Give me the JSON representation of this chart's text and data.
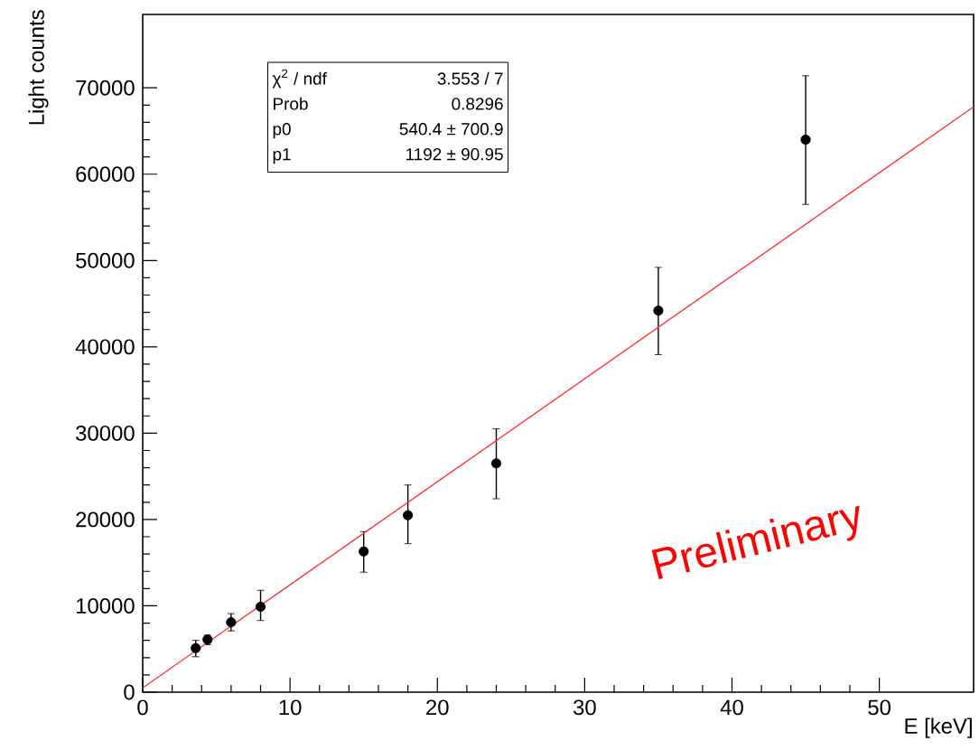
{
  "chart_data": {
    "type": "scatter",
    "xlabel": "E [keV]",
    "ylabel": "Light counts",
    "series": [
      {
        "color": "#000000",
        "marker": "circle",
        "x": [
          3.6,
          4.4,
          6,
          8,
          15,
          18,
          24,
          35,
          45
        ],
        "values": [
          5100,
          6100,
          8100,
          9900,
          16300,
          20500,
          26500,
          44200,
          64000
        ],
        "errors": [
          [
            4100,
            6000
          ],
          [
            5500,
            6600
          ],
          [
            7100,
            9100
          ],
          [
            8300,
            11800
          ],
          [
            13900,
            18600
          ],
          [
            17200,
            24000
          ],
          [
            22400,
            30500
          ],
          [
            39100,
            49200
          ],
          [
            56500,
            71400
          ]
        ]
      },
      {
        "type": "line",
        "color": "#f04040",
        "marker": "none",
        "line_style": "solid",
        "x": [
          0,
          56.4
        ],
        "values": [
          500,
          67800
        ]
      }
    ],
    "xlim": [
      0,
      56.4
    ],
    "ylim": [
      0,
      78500
    ],
    "xticks": [
      0,
      10,
      20,
      30,
      40,
      50
    ],
    "yticks": [
      0,
      10000,
      20000,
      30000,
      40000,
      50000,
      60000,
      70000
    ],
    "grid": false,
    "annotations": [
      "χ$^{2}$ / ndf",
      "3.553 / 7",
      "Prob",
      "0.8296",
      "p0",
      "540.4 ± 700.9",
      "p1",
      "1192 ± 90.95",
      "Preliminary"
    ]
  }
}
